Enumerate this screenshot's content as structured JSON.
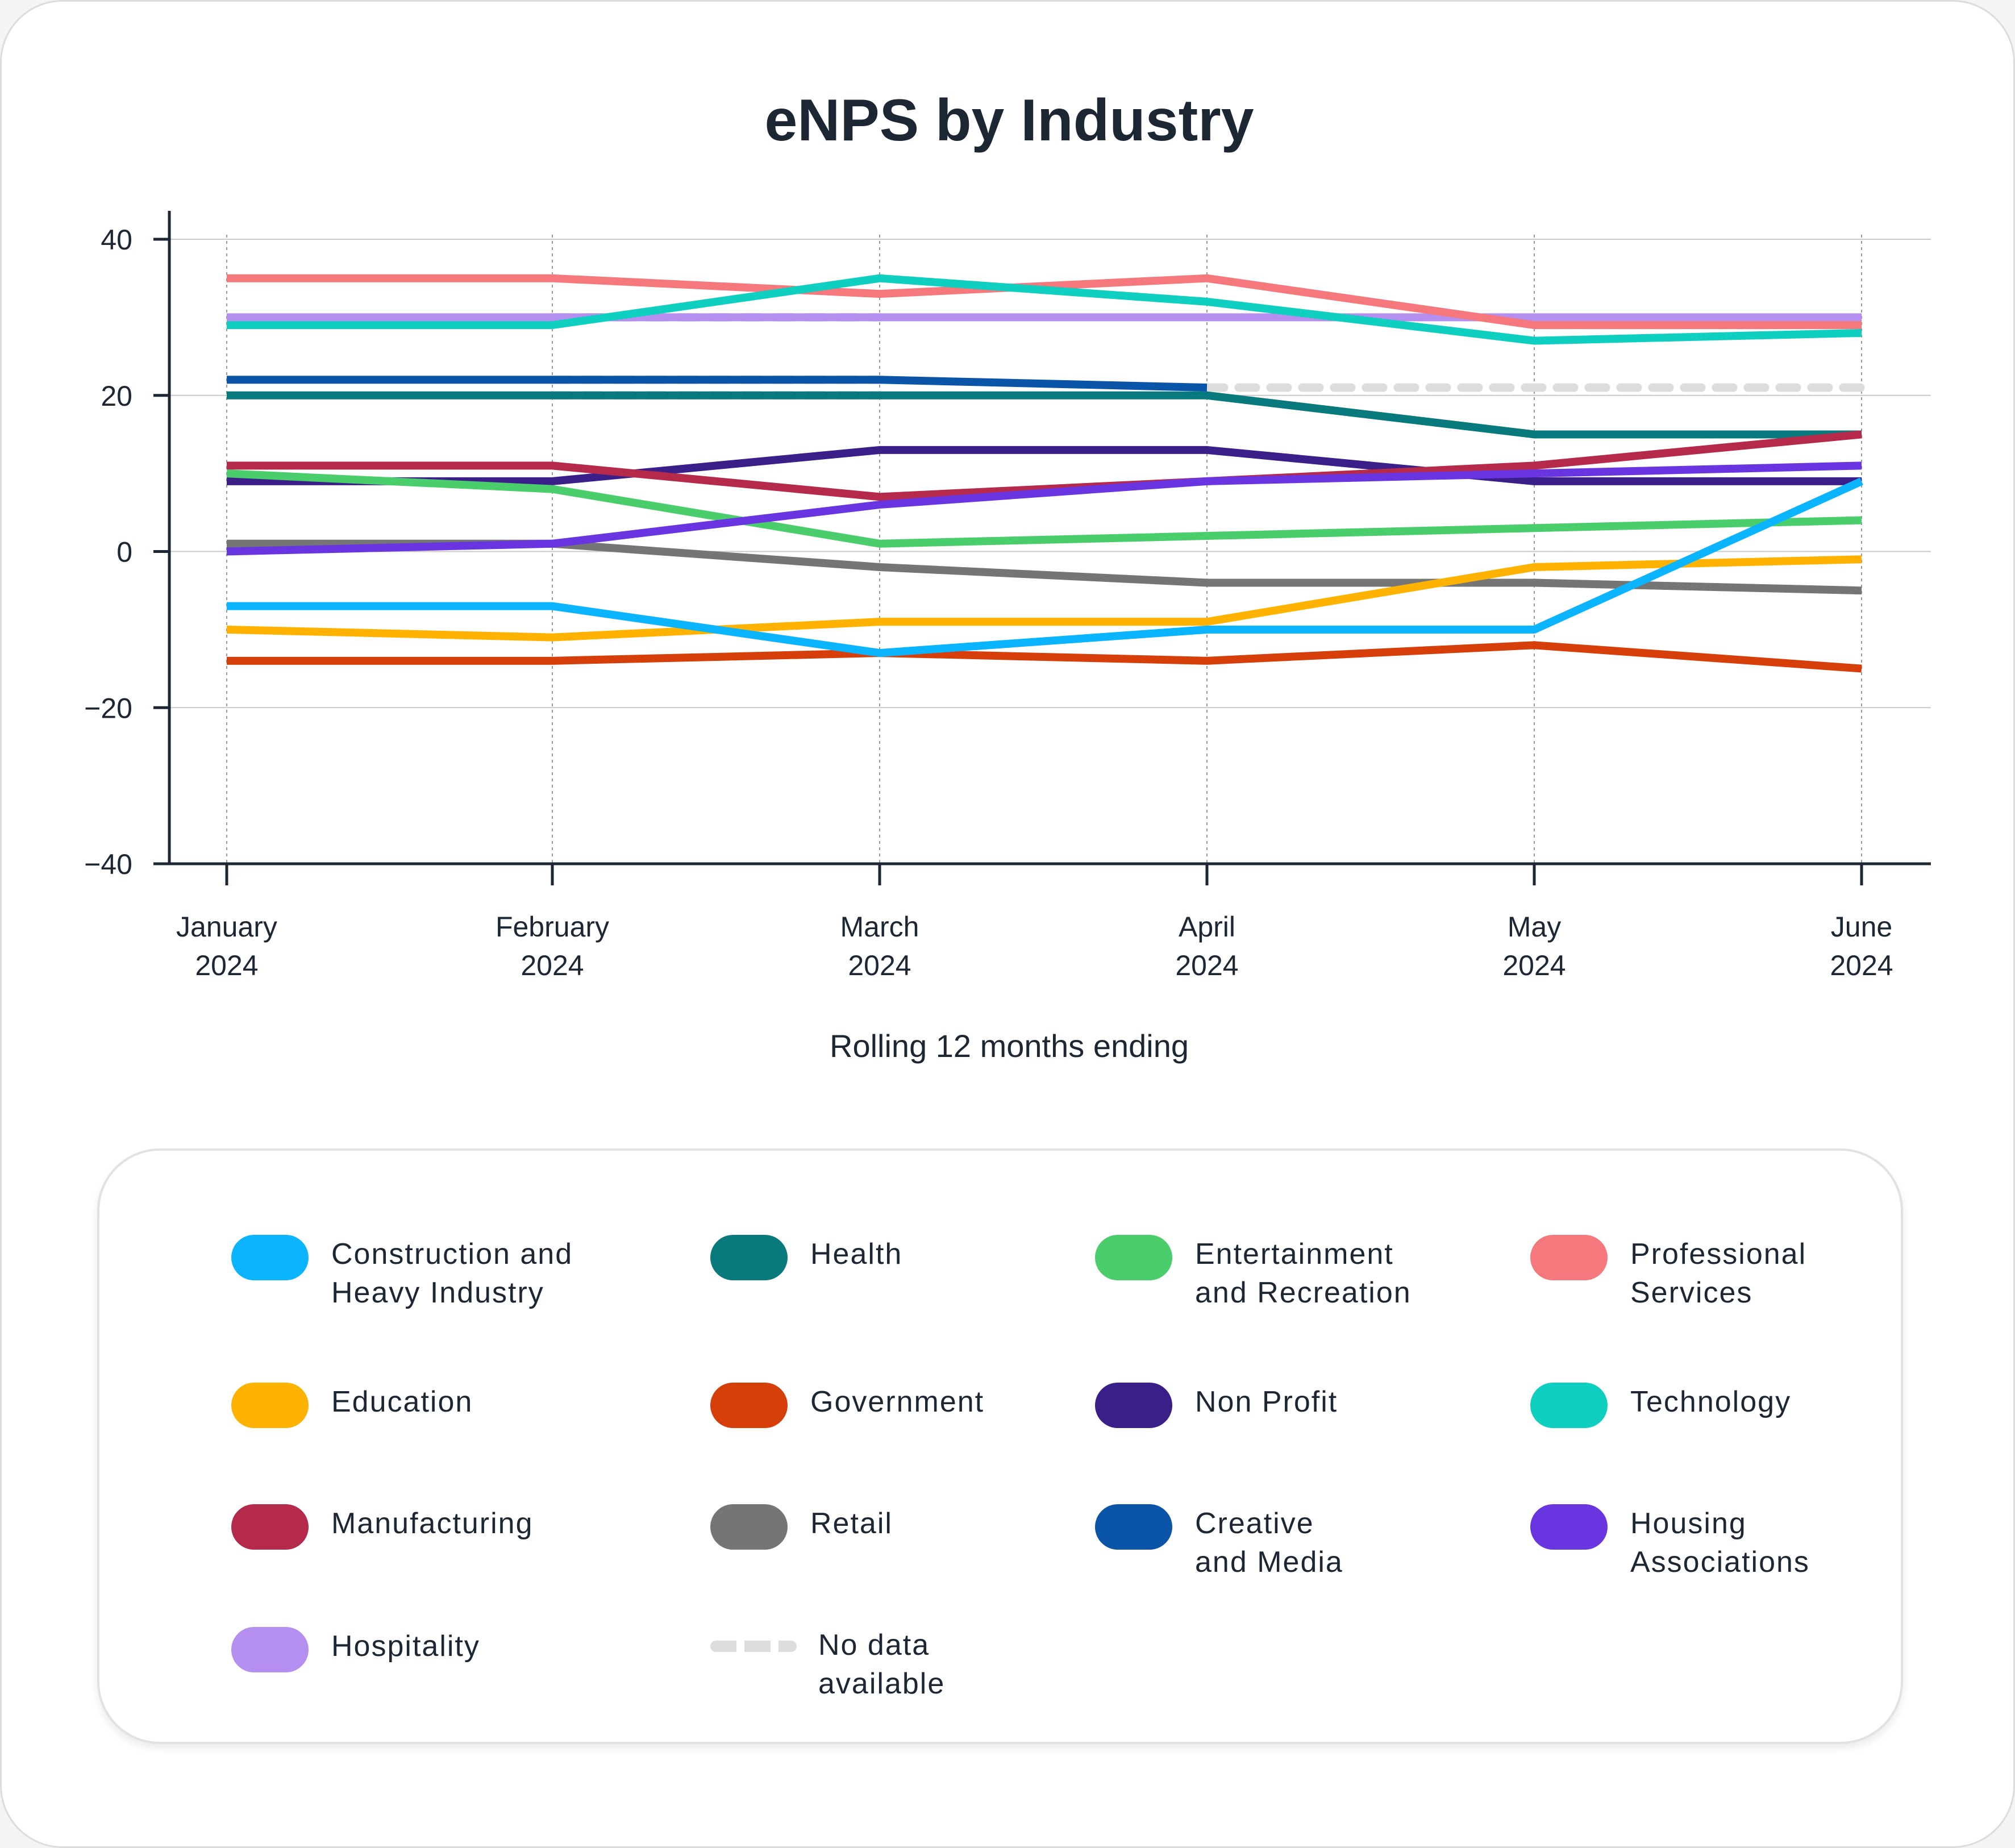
{
  "chart_data": {
    "type": "line",
    "title": "eNPS by Industry",
    "xlabel": "Rolling 12 months ending",
    "ylabel": "",
    "ylim": [
      -40,
      40
    ],
    "yticks": [
      "40",
      "20",
      "0",
      "−20",
      "−40"
    ],
    "ytick_values": [
      40,
      20,
      0,
      -20,
      -40
    ],
    "categories": [
      [
        "January",
        "2024"
      ],
      [
        "February",
        "2024"
      ],
      [
        "March",
        "2024"
      ],
      [
        "April",
        "2024"
      ],
      [
        "May",
        "2024"
      ],
      [
        "June",
        "2024"
      ]
    ],
    "series": [
      {
        "name": "Construction and\nHeavy Industry",
        "color": "#0ab4ff",
        "values": [
          -7,
          -7,
          -13,
          -10,
          -10,
          9
        ]
      },
      {
        "name": "Health",
        "color": "#08797c",
        "values": [
          20,
          20,
          20,
          20,
          15,
          15
        ]
      },
      {
        "name": "Entertainment\nand Recreation",
        "color": "#4ace6b",
        "values": [
          10,
          8,
          1,
          2,
          3,
          4
        ]
      },
      {
        "name": "Professional\nServices",
        "color": "#f5797c",
        "values": [
          35,
          35,
          33,
          35,
          29,
          29
        ]
      },
      {
        "name": "Education",
        "color": "#ffb300",
        "values": [
          -10,
          -11,
          -9,
          -9,
          -2,
          -1
        ]
      },
      {
        "name": "Government",
        "color": "#d63f0a",
        "values": [
          -14,
          -14,
          -13,
          -14,
          -12,
          -15
        ]
      },
      {
        "name": "Non Profit",
        "color": "#3b1f88",
        "values": [
          9,
          9,
          13,
          13,
          9,
          9
        ]
      },
      {
        "name": "Technology",
        "color": "#0fcfc0",
        "values": [
          29,
          29,
          35,
          32,
          27,
          28
        ]
      },
      {
        "name": "Manufacturing",
        "color": "#b5294a",
        "values": [
          11,
          11,
          7,
          9,
          11,
          15
        ]
      },
      {
        "name": "Retail",
        "color": "#757575",
        "values": [
          1,
          1,
          -2,
          -4,
          -4,
          -5
        ]
      },
      {
        "name": "Creative\nand Media",
        "color": "#0b55a9",
        "values": [
          22,
          22,
          22,
          21,
          null,
          null
        ]
      },
      {
        "name": "Housing\nAssociations",
        "color": "#6935e0",
        "values": [
          0,
          1,
          6,
          9,
          10,
          11
        ]
      },
      {
        "name": "Hospitality",
        "color": "#b48ff0",
        "values": [
          30,
          30,
          30,
          30,
          30,
          30
        ]
      }
    ],
    "no_data_segments": [
      {
        "label": "No data available",
        "color": "#dddddd",
        "values": [
          null,
          30,
          30,
          null,
          null,
          null
        ]
      },
      {
        "label": "No data available",
        "color": "#dddddd",
        "values": [
          null,
          20,
          20,
          null,
          null,
          null
        ]
      },
      {
        "label": "No data available",
        "color": "#dddddd",
        "values": [
          null,
          22,
          22,
          null,
          null,
          null
        ]
      },
      {
        "label": "No data available",
        "color": "#dddddd",
        "values": [
          null,
          null,
          null,
          21,
          21,
          21
        ]
      }
    ],
    "legend_placement": "bottom",
    "no_data_label": "No data\navailable"
  }
}
